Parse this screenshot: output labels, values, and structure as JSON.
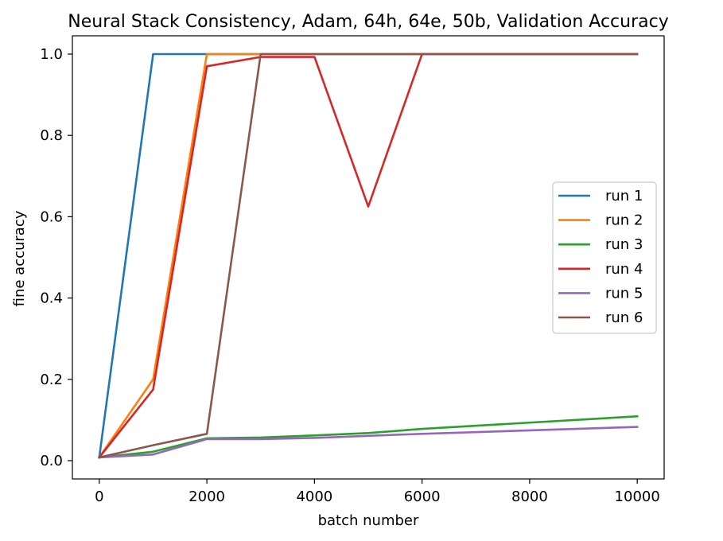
{
  "chart_data": {
    "type": "line",
    "title": "Neural Stack Consistency, Adam, 64h, 64e, 50b, Validation Accuracy",
    "xlabel": "batch number",
    "ylabel": "fine accuracy",
    "xlim": [
      -500,
      10500
    ],
    "ylim": [
      -0.045,
      1.045
    ],
    "xticks": [
      0,
      2000,
      4000,
      6000,
      8000,
      10000
    ],
    "xtick_labels": [
      "0",
      "2000",
      "4000",
      "6000",
      "8000",
      "10000"
    ],
    "yticks": [
      0.0,
      0.2,
      0.4,
      0.6,
      0.8,
      1.0
    ],
    "ytick_labels": [
      "0.0",
      "0.2",
      "0.4",
      "0.6",
      "0.8",
      "1.0"
    ],
    "grid": false,
    "legend_position": "center-right",
    "series": [
      {
        "name": "run 1",
        "color": "#1f77b4",
        "x": [
          0,
          1000,
          2000,
          3000,
          4000,
          5000,
          6000,
          10000
        ],
        "y": [
          0.008,
          1.0,
          1.0,
          1.0,
          1.0,
          1.0,
          1.0,
          1.0
        ]
      },
      {
        "name": "run 2",
        "color": "#ff7f0e",
        "x": [
          0,
          1000,
          2000,
          3000,
          4000,
          5000,
          6000,
          10000
        ],
        "y": [
          0.008,
          0.2,
          1.0,
          1.0,
          1.0,
          1.0,
          1.0,
          1.0
        ]
      },
      {
        "name": "run 3",
        "color": "#2ca02c",
        "x": [
          0,
          1000,
          2000,
          3000,
          4000,
          5000,
          6000,
          10000
        ],
        "y": [
          0.008,
          0.022,
          0.055,
          0.057,
          0.062,
          0.068,
          0.078,
          0.109
        ]
      },
      {
        "name": "run 4",
        "color": "#d62728",
        "x": [
          0,
          1000,
          2000,
          3000,
          4000,
          5000,
          6000,
          10000
        ],
        "y": [
          0.008,
          0.175,
          0.97,
          0.993,
          0.993,
          0.625,
          1.0,
          1.0
        ]
      },
      {
        "name": "run 5",
        "color": "#9467bd",
        "x": [
          0,
          1000,
          2000,
          3000,
          4000,
          5000,
          6000,
          10000
        ],
        "y": [
          0.008,
          0.015,
          0.053,
          0.053,
          0.056,
          0.061,
          0.066,
          0.083
        ]
      },
      {
        "name": "run 6",
        "color": "#8c564b",
        "x": [
          0,
          1000,
          2000,
          3000,
          4000,
          5000,
          6000,
          10000
        ],
        "y": [
          0.008,
          0.038,
          0.066,
          1.0,
          1.0,
          1.0,
          1.0,
          1.0
        ]
      }
    ]
  }
}
